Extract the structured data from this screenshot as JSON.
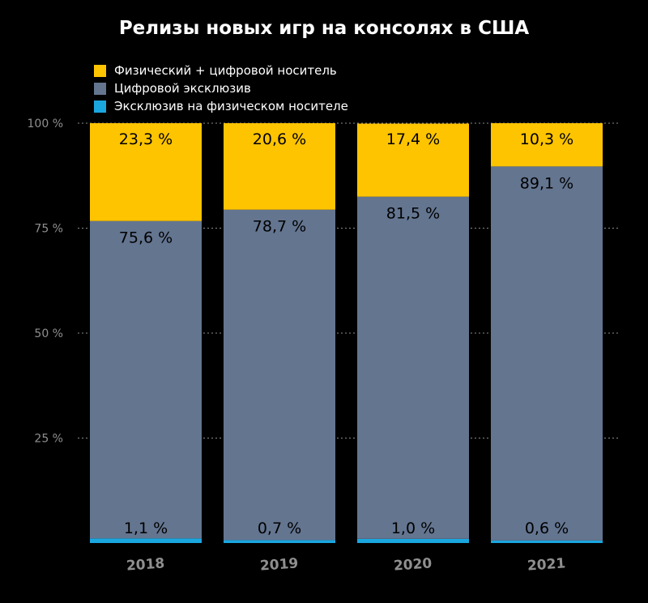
{
  "chart_data": {
    "type": "bar",
    "stacked": true,
    "title": "Релизы новых игр на консолях в США",
    "categories": [
      "2018",
      "2019",
      "2020",
      "2021"
    ],
    "series": [
      {
        "name": "Эксклюзив на физическом носителе",
        "color": "#1aa7e0",
        "values": [
          1.1,
          0.7,
          1.0,
          0.6
        ],
        "labels": [
          "1,1 %",
          "0,7 %",
          "1,0 %",
          "0,6 %"
        ]
      },
      {
        "name": "Цифровой эксклюзив",
        "color": "#647590",
        "values": [
          75.6,
          78.7,
          81.5,
          89.1
        ],
        "labels": [
          "75,6 %",
          "78,7 %",
          "81,5 %",
          "89,1 %"
        ]
      },
      {
        "name": "Физический + цифровой носитель",
        "color": "#ffc400",
        "values": [
          23.3,
          20.6,
          17.4,
          10.3
        ],
        "labels": [
          "23,3 %",
          "20,6 %",
          "17,4 %",
          "10,3 %"
        ]
      }
    ],
    "legend_order": [
      2,
      1,
      0
    ],
    "yticks": [
      {
        "value": 0,
        "label": ""
      },
      {
        "value": 25,
        "label": "25 %"
      },
      {
        "value": 50,
        "label": "50 %"
      },
      {
        "value": 75,
        "label": "75 %"
      },
      {
        "value": 100,
        "label": "100 %"
      }
    ],
    "ylim": [
      0,
      100
    ],
    "grid": true,
    "legend_position": "top-left"
  }
}
